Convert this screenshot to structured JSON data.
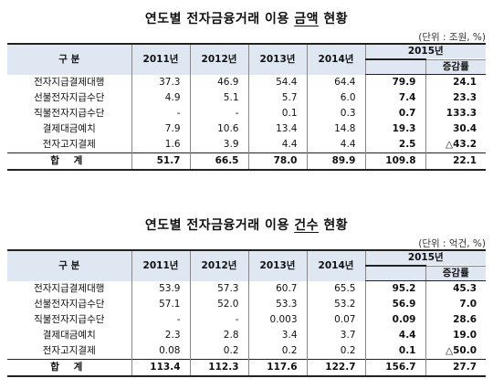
{
  "tables": [
    {
      "title": "연도별 전자금융거래 이용 금액 현황",
      "title_underlined": "금액",
      "unit": "(단위 : 조원, %)",
      "header": {
        "category": "구    분",
        "years": [
          "2011년",
          "2012년",
          "2013년",
          "2014년"
        ],
        "year2015": "2015년",
        "growth": "증감률"
      },
      "rows": [
        {
          "label": "전자지급결제대행",
          "v": [
            "37.3",
            "46.9",
            "54.4",
            "64.4",
            "79.9",
            "24.1"
          ]
        },
        {
          "label": "선불전자지급수단",
          "v": [
            "4.9",
            "5.1",
            "5.7",
            "6.0",
            "7.4",
            "23.3"
          ]
        },
        {
          "label": "직불전자지급수단",
          "v": [
            "-",
            "-",
            "0.1",
            "0.3",
            "0.7",
            "133.3"
          ]
        },
        {
          "label": "결제대금예치",
          "v": [
            "7.9",
            "10.6",
            "13.4",
            "14.8",
            "19.3",
            "30.4"
          ]
        },
        {
          "label": "전자고지결제",
          "v": [
            "1.6",
            "3.9",
            "4.4",
            "4.4",
            "2.5",
            "△43.2"
          ]
        }
      ],
      "total": {
        "label": "합 계",
        "v": [
          "51.7",
          "66.5",
          "78.0",
          "89.9",
          "109.8",
          "22.1"
        ]
      }
    },
    {
      "title": "연도별 전자금융거래 이용 건수 현황",
      "title_underlined": "건수",
      "unit": "(단위 : 억건, %)",
      "header": {
        "category": "구    분",
        "years": [
          "2011년",
          "2012년",
          "2013년",
          "2014년"
        ],
        "year2015": "2015년",
        "growth": "증감률"
      },
      "rows": [
        {
          "label": "전자지급결제대행",
          "v": [
            "53.9",
            "57.3",
            "60.7",
            "65.5",
            "95.2",
            "45.3"
          ]
        },
        {
          "label": "선불전자지급수단",
          "v": [
            "57.1",
            "52.0",
            "53.3",
            "53.2",
            "56.9",
            "7.0"
          ]
        },
        {
          "label": "직불전자지급수단",
          "v": [
            "-",
            "-",
            "0.003",
            "0.07",
            "0.09",
            "28.6"
          ]
        },
        {
          "label": "결제대금예치",
          "v": [
            "2.3",
            "2.8",
            "3.4",
            "3.7",
            "4.4",
            "19.0"
          ]
        },
        {
          "label": "전자고지결제",
          "v": [
            "0.08",
            "0.2",
            "0.2",
            "0.2",
            "0.1",
            "△50.0"
          ]
        }
      ],
      "total": {
        "label": "합 계",
        "v": [
          "113.4",
          "112.3",
          "117.6",
          "122.7",
          "156.7",
          "27.7"
        ]
      }
    }
  ]
}
